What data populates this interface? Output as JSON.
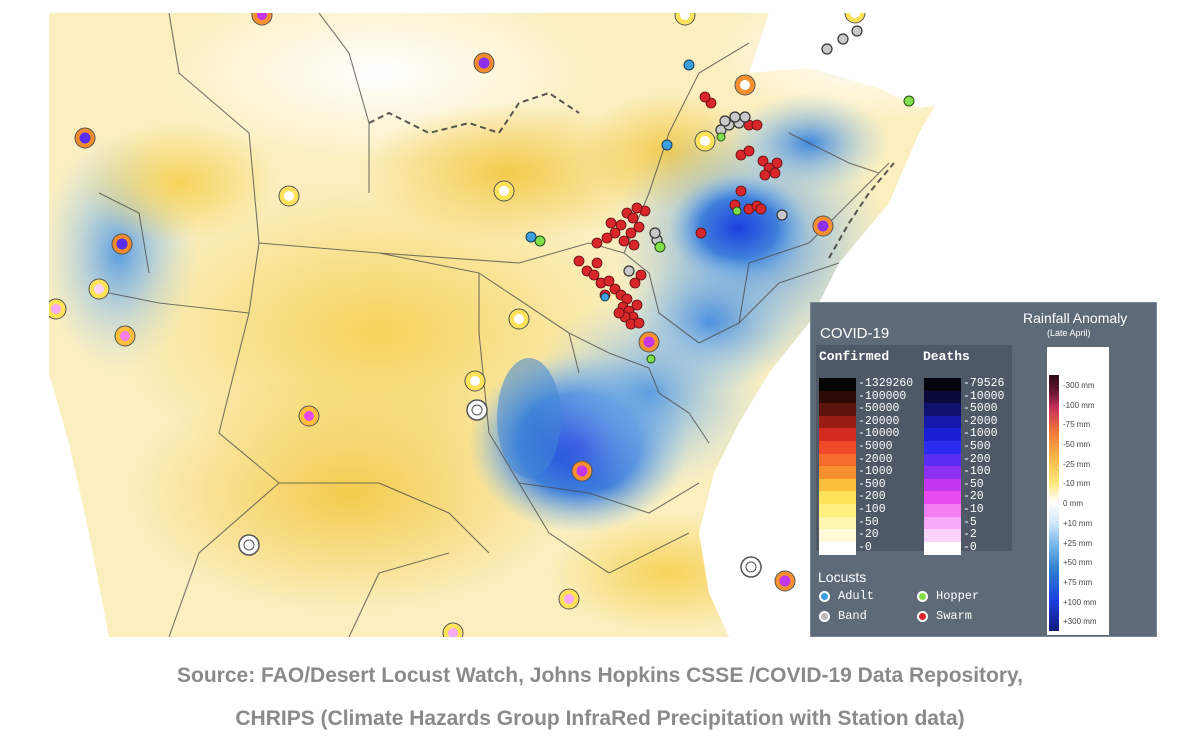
{
  "legend": {
    "covid": {
      "title": "COVID-19",
      "confirmed_header": "Confirmed",
      "deaths_header": "Deaths",
      "confirmed_scale": [
        {
          "label": "1329260",
          "color": "#050505"
        },
        {
          "label": "100000",
          "color": "#2b0a06"
        },
        {
          "label": "50000",
          "color": "#5d130b"
        },
        {
          "label": "20000",
          "color": "#9a1d14"
        },
        {
          "label": "10000",
          "color": "#d42a1f"
        },
        {
          "label": "5000",
          "color": "#ee4a2a"
        },
        {
          "label": "2000",
          "color": "#f36c2b"
        },
        {
          "label": "1000",
          "color": "#f7902f"
        },
        {
          "label": "500",
          "color": "#fbbf3c"
        },
        {
          "label": "200",
          "color": "#fde25a"
        },
        {
          "label": "100",
          "color": "#fff07f"
        },
        {
          "label": "50",
          "color": "#fff6b0"
        },
        {
          "label": "20",
          "color": "#fffbd8"
        },
        {
          "label": "0",
          "color": "#ffffff"
        }
      ],
      "deaths_scale": [
        {
          "label": "79526",
          "color": "#050510"
        },
        {
          "label": "10000",
          "color": "#0a0a3a"
        },
        {
          "label": "5000",
          "color": "#101070"
        },
        {
          "label": "2000",
          "color": "#1518a8"
        },
        {
          "label": "1000",
          "color": "#1a1fd6"
        },
        {
          "label": "500",
          "color": "#2b2cf0"
        },
        {
          "label": "200",
          "color": "#5a2ef2"
        },
        {
          "label": "100",
          "color": "#8d2ff0"
        },
        {
          "label": "50",
          "color": "#c436ef"
        },
        {
          "label": "20",
          "color": "#e84af0"
        },
        {
          "label": "10",
          "color": "#f27ef2"
        },
        {
          "label": "5",
          "color": "#f7aaf7"
        },
        {
          "label": "2",
          "color": "#fbd2fb"
        },
        {
          "label": "0",
          "color": "#ffffff"
        }
      ]
    },
    "rainfall": {
      "title": "Rainfall Anomaly",
      "subtitle": "(Late April)",
      "labels": [
        "-300 mm",
        "-100 mm",
        "-75 mm",
        "-50 mm",
        "-25 mm",
        "-10 mm",
        "0 mm",
        "+10 mm",
        "+25 mm",
        "+50 mm",
        "+75 mm",
        "+100 mm",
        "+300 mm"
      ]
    },
    "locusts": {
      "title": "Locusts",
      "items": [
        {
          "label": "Adult",
          "color": "#3aa0e0"
        },
        {
          "label": "Hopper",
          "color": "#7fe04a"
        },
        {
          "label": "Band",
          "color": "#b9b9b9"
        },
        {
          "label": "Swarm",
          "color": "#d8262a"
        }
      ]
    }
  },
  "caption": {
    "line1": "Source: FAO/Desert Locust Watch, Johns Hopkins CSSE /COVID-19 Data Repository,",
    "line2": "CHRIPS (Climate Hazards Group InfraRed Precipitation with Station data)"
  }
}
